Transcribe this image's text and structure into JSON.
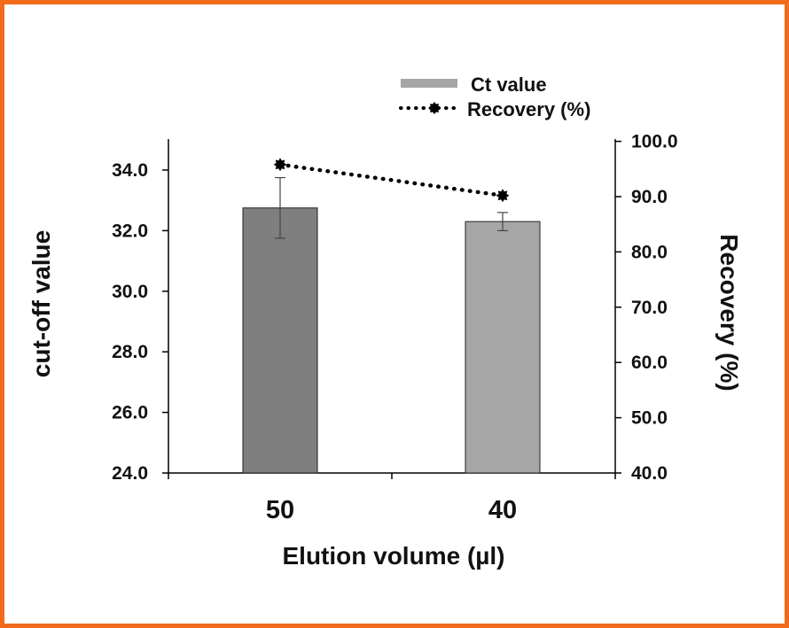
{
  "chart_data": {
    "type": "bar",
    "categories": [
      "50",
      "40"
    ],
    "xlabel": "Elution volume (µl)",
    "ylabel": "cut-off value",
    "y2label": "Recovery (%)",
    "ylim": [
      24.0,
      35.0
    ],
    "y2lim": [
      40.0,
      100.0
    ],
    "yticks": [
      "24.0",
      "26.0",
      "28.0",
      "30.0",
      "32.0",
      "34.0"
    ],
    "y2ticks": [
      "40.0",
      "50.0",
      "60.0",
      "70.0",
      "80.0",
      "90.0",
      "100.0"
    ],
    "series": [
      {
        "name": "Ct value",
        "kind": "bar",
        "axis": "left",
        "values": [
          32.75,
          32.3
        ],
        "errors": [
          1.0,
          0.3
        ],
        "colors": [
          "#7f7f7f",
          "#a6a6a6"
        ]
      },
      {
        "name": "Recovery (%)",
        "kind": "line",
        "axis": "right",
        "style": "dotted",
        "marker": "star",
        "values": [
          95.8,
          90.2
        ],
        "color": "#000000"
      }
    ],
    "legend_position": "top-right",
    "grid": false
  }
}
